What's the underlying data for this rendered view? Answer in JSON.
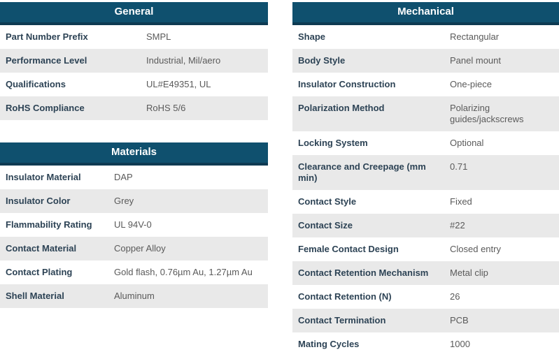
{
  "colors": {
    "header_bg": "#0f506e",
    "header_border": "#0e3a52",
    "header_text": "#ffffff",
    "row_bg": "#ffffff",
    "row_alt_bg": "#e9e9e9",
    "label_text": "#2d4355",
    "value_text": "#5a5a5a"
  },
  "tables": [
    {
      "title": "General",
      "rows": [
        {
          "label": "Part Number Prefix",
          "value": "SMPL"
        },
        {
          "label": "Performance Level",
          "value": "Industrial, Mil/aero"
        },
        {
          "label": "Qualifications",
          "value": "UL#E49351, UL"
        },
        {
          "label": "RoHS Compliance",
          "value": "RoHS 5/6"
        }
      ]
    },
    {
      "title": "Materials",
      "rows": [
        {
          "label": "Insulator Material",
          "value": "DAP"
        },
        {
          "label": "Insulator Color",
          "value": "Grey"
        },
        {
          "label": "Flammability Rating",
          "value": "UL 94V-0"
        },
        {
          "label": "Contact Material",
          "value": "Copper Alloy"
        },
        {
          "label": "Contact Plating",
          "value": "Gold flash, 0.76µm Au, 1.27µm Au"
        },
        {
          "label": "Shell Material",
          "value": "Aluminum"
        }
      ]
    },
    {
      "title": "Mechanical",
      "rows": [
        {
          "label": "Shape",
          "value": "Rectangular"
        },
        {
          "label": "Body Style",
          "value": "Panel mount"
        },
        {
          "label": "Insulator Construction",
          "value": "One-piece"
        },
        {
          "label": "Polarization Method",
          "value": "Polarizing guides/jackscrews"
        },
        {
          "label": "Locking System",
          "value": "Optional"
        },
        {
          "label": "Clearance and Creepage (mm min)",
          "value": "0.71"
        },
        {
          "label": "Contact Style",
          "value": "Fixed"
        },
        {
          "label": "Contact Size",
          "value": "#22"
        },
        {
          "label": "Female Contact Design",
          "value": "Closed entry"
        },
        {
          "label": "Contact Retention Mechanism",
          "value": "Metal clip"
        },
        {
          "label": "Contact Retention (N)",
          "value": "26"
        },
        {
          "label": "Contact Termination",
          "value": "PCB"
        },
        {
          "label": "Mating Cycles",
          "value": "1000"
        }
      ]
    }
  ]
}
